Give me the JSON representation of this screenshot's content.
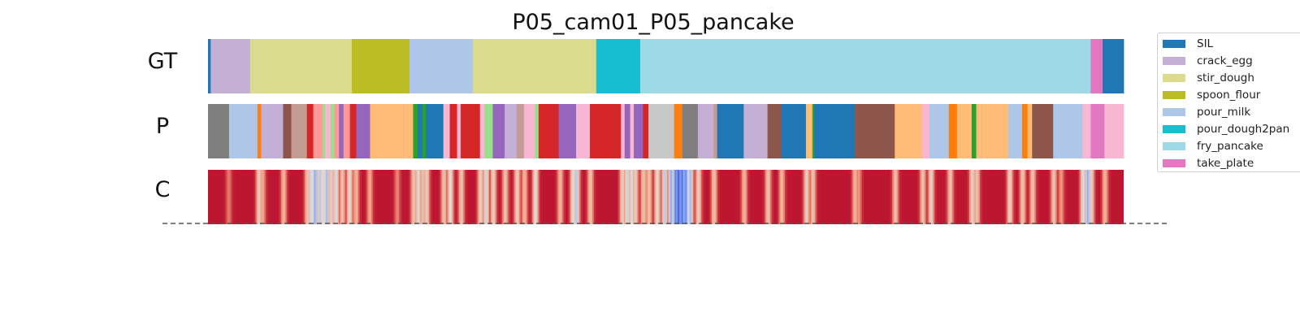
{
  "chart_data": {
    "type": "segmentation",
    "title": "P05_cam01_P05_pancake",
    "rows": [
      "GT",
      "P",
      "C"
    ],
    "x_range": [
      0,
      1
    ],
    "legend": {
      "placement": "right",
      "items": [
        {
          "name": "SIL",
          "color": "#1f77b4"
        },
        {
          "name": "crack_egg",
          "color": "#c5b0d5"
        },
        {
          "name": "stir_dough",
          "color": "#dbdb8d"
        },
        {
          "name": "spoon_flour",
          "color": "#bcbd22"
        },
        {
          "name": "pour_milk",
          "color": "#aec7e8"
        },
        {
          "name": "pour_dough2pan",
          "color": "#17becf"
        },
        {
          "name": "fry_pancake",
          "color": "#9edae5"
        },
        {
          "name": "take_plate",
          "color": "#e377c2"
        }
      ]
    },
    "gt_segments": [
      {
        "start": 0.0,
        "end": 0.003,
        "color": "#1f77b4"
      },
      {
        "start": 0.003,
        "end": 0.046,
        "color": "#c5b0d5"
      },
      {
        "start": 0.046,
        "end": 0.157,
        "color": "#dbdb8d"
      },
      {
        "start": 0.157,
        "end": 0.22,
        "color": "#bcbd22"
      },
      {
        "start": 0.22,
        "end": 0.289,
        "color": "#aec7e8"
      },
      {
        "start": 0.289,
        "end": 0.424,
        "color": "#dbdb8d"
      },
      {
        "start": 0.424,
        "end": 0.472,
        "color": "#17becf"
      },
      {
        "start": 0.472,
        "end": 0.964,
        "color": "#9edae5"
      },
      {
        "start": 0.964,
        "end": 0.977,
        "color": "#e377c2"
      },
      {
        "start": 0.977,
        "end": 1.0,
        "color": "#1f77b4"
      }
    ],
    "pred_segments": [
      {
        "start": 0.0,
        "end": 0.023,
        "color": "#7f7f7f"
      },
      {
        "start": 0.023,
        "end": 0.054,
        "color": "#aec7e8"
      },
      {
        "start": 0.054,
        "end": 0.058,
        "color": "#ff7f0e"
      },
      {
        "start": 0.058,
        "end": 0.082,
        "color": "#c5b0d5"
      },
      {
        "start": 0.082,
        "end": 0.091,
        "color": "#8c564b"
      },
      {
        "start": 0.091,
        "end": 0.108,
        "color": "#c49c94"
      },
      {
        "start": 0.108,
        "end": 0.115,
        "color": "#d62728"
      },
      {
        "start": 0.115,
        "end": 0.125,
        "color": "#ff9896"
      },
      {
        "start": 0.125,
        "end": 0.128,
        "color": "#98df8a"
      },
      {
        "start": 0.128,
        "end": 0.134,
        "color": "#f7b6d2"
      },
      {
        "start": 0.134,
        "end": 0.138,
        "color": "#98df8a"
      },
      {
        "start": 0.138,
        "end": 0.143,
        "color": "#ff9896"
      },
      {
        "start": 0.143,
        "end": 0.148,
        "color": "#9467bd"
      },
      {
        "start": 0.148,
        "end": 0.155,
        "color": "#ff9896"
      },
      {
        "start": 0.155,
        "end": 0.162,
        "color": "#d62728"
      },
      {
        "start": 0.162,
        "end": 0.177,
        "color": "#9467bd"
      },
      {
        "start": 0.177,
        "end": 0.224,
        "color": "#ffbb78"
      },
      {
        "start": 0.224,
        "end": 0.229,
        "color": "#2ca02c"
      },
      {
        "start": 0.229,
        "end": 0.234,
        "color": "#1f77b4"
      },
      {
        "start": 0.234,
        "end": 0.238,
        "color": "#2ca02c"
      },
      {
        "start": 0.238,
        "end": 0.257,
        "color": "#1f77b4"
      },
      {
        "start": 0.257,
        "end": 0.264,
        "color": "#f7b6d2"
      },
      {
        "start": 0.264,
        "end": 0.272,
        "color": "#d62728"
      },
      {
        "start": 0.272,
        "end": 0.276,
        "color": "#f7b6d2"
      },
      {
        "start": 0.276,
        "end": 0.297,
        "color": "#d62728"
      },
      {
        "start": 0.297,
        "end": 0.302,
        "color": "#f7b6d2"
      },
      {
        "start": 0.302,
        "end": 0.311,
        "color": "#98df8a"
      },
      {
        "start": 0.311,
        "end": 0.324,
        "color": "#9467bd"
      },
      {
        "start": 0.324,
        "end": 0.337,
        "color": "#c5b0d5"
      },
      {
        "start": 0.337,
        "end": 0.345,
        "color": "#c49c94"
      },
      {
        "start": 0.345,
        "end": 0.357,
        "color": "#f7b6d2"
      },
      {
        "start": 0.357,
        "end": 0.361,
        "color": "#98df8a"
      },
      {
        "start": 0.361,
        "end": 0.383,
        "color": "#d62728"
      },
      {
        "start": 0.383,
        "end": 0.402,
        "color": "#9467bd"
      },
      {
        "start": 0.402,
        "end": 0.417,
        "color": "#f7b6d2"
      },
      {
        "start": 0.417,
        "end": 0.451,
        "color": "#d62728"
      },
      {
        "start": 0.451,
        "end": 0.455,
        "color": "#f7b6d2"
      },
      {
        "start": 0.455,
        "end": 0.461,
        "color": "#9467bd"
      },
      {
        "start": 0.461,
        "end": 0.465,
        "color": "#f7b6d2"
      },
      {
        "start": 0.465,
        "end": 0.475,
        "color": "#9467bd"
      },
      {
        "start": 0.475,
        "end": 0.481,
        "color": "#d62728"
      },
      {
        "start": 0.481,
        "end": 0.509,
        "color": "#c7c7c7"
      },
      {
        "start": 0.509,
        "end": 0.518,
        "color": "#ff7f0e"
      },
      {
        "start": 0.518,
        "end": 0.535,
        "color": "#7f7f7f"
      },
      {
        "start": 0.535,
        "end": 0.552,
        "color": "#c5b0d5"
      },
      {
        "start": 0.552,
        "end": 0.556,
        "color": "#c49c94"
      },
      {
        "start": 0.556,
        "end": 0.585,
        "color": "#1f77b4"
      },
      {
        "start": 0.585,
        "end": 0.611,
        "color": "#c5b0d5"
      },
      {
        "start": 0.611,
        "end": 0.626,
        "color": "#8c564b"
      },
      {
        "start": 0.626,
        "end": 0.653,
        "color": "#1f77b4"
      },
      {
        "start": 0.653,
        "end": 0.66,
        "color": "#ffbb78"
      },
      {
        "start": 0.66,
        "end": 0.662,
        "color": "#2ca02c"
      },
      {
        "start": 0.662,
        "end": 0.706,
        "color": "#1f77b4"
      },
      {
        "start": 0.706,
        "end": 0.75,
        "color": "#8c564b"
      },
      {
        "start": 0.75,
        "end": 0.78,
        "color": "#ffbb78"
      },
      {
        "start": 0.78,
        "end": 0.788,
        "color": "#f7b6d2"
      },
      {
        "start": 0.788,
        "end": 0.809,
        "color": "#aec7e8"
      },
      {
        "start": 0.809,
        "end": 0.818,
        "color": "#ff7f0e"
      },
      {
        "start": 0.818,
        "end": 0.834,
        "color": "#ffbb78"
      },
      {
        "start": 0.834,
        "end": 0.839,
        "color": "#2ca02c"
      },
      {
        "start": 0.839,
        "end": 0.874,
        "color": "#ffbb78"
      },
      {
        "start": 0.874,
        "end": 0.889,
        "color": "#aec7e8"
      },
      {
        "start": 0.889,
        "end": 0.895,
        "color": "#ff7f0e"
      },
      {
        "start": 0.895,
        "end": 0.9,
        "color": "#ffbb78"
      },
      {
        "start": 0.9,
        "end": 0.923,
        "color": "#8c564b"
      },
      {
        "start": 0.923,
        "end": 0.955,
        "color": "#aec7e8"
      },
      {
        "start": 0.955,
        "end": 0.964,
        "color": "#f7b6d2"
      },
      {
        "start": 0.964,
        "end": 0.979,
        "color": "#e377c2"
      },
      {
        "start": 0.979,
        "end": 1.0,
        "color": "#f7b6d2"
      }
    ],
    "confidence": {
      "colormap": "coolwarm",
      "base_level": 0.95,
      "dips": [
        {
          "x": 0.022,
          "level": 0.8
        },
        {
          "x": 0.055,
          "level": 0.55
        },
        {
          "x": 0.059,
          "level": 0.7
        },
        {
          "x": 0.082,
          "level": 0.65
        },
        {
          "x": 0.108,
          "level": 0.6
        },
        {
          "x": 0.112,
          "level": 0.45
        },
        {
          "x": 0.116,
          "level": 0.3
        },
        {
          "x": 0.121,
          "level": 0.4
        },
        {
          "x": 0.125,
          "level": 0.5
        },
        {
          "x": 0.129,
          "level": 0.35
        },
        {
          "x": 0.134,
          "level": 0.55
        },
        {
          "x": 0.139,
          "level": 0.45
        },
        {
          "x": 0.146,
          "level": 0.6
        },
        {
          "x": 0.154,
          "level": 0.5
        },
        {
          "x": 0.161,
          "level": 0.65
        },
        {
          "x": 0.176,
          "level": 0.7
        },
        {
          "x": 0.206,
          "level": 0.78
        },
        {
          "x": 0.224,
          "level": 0.6
        },
        {
          "x": 0.229,
          "level": 0.5
        },
        {
          "x": 0.234,
          "level": 0.6
        },
        {
          "x": 0.238,
          "level": 0.55
        },
        {
          "x": 0.257,
          "level": 0.6
        },
        {
          "x": 0.264,
          "level": 0.5
        },
        {
          "x": 0.276,
          "level": 0.6
        },
        {
          "x": 0.297,
          "level": 0.55
        },
        {
          "x": 0.303,
          "level": 0.45
        },
        {
          "x": 0.311,
          "level": 0.55
        },
        {
          "x": 0.324,
          "level": 0.6
        },
        {
          "x": 0.337,
          "level": 0.55
        },
        {
          "x": 0.345,
          "level": 0.65
        },
        {
          "x": 0.357,
          "level": 0.5
        },
        {
          "x": 0.384,
          "level": 0.65
        },
        {
          "x": 0.398,
          "level": 0.5
        },
        {
          "x": 0.402,
          "level": 0.4
        },
        {
          "x": 0.417,
          "level": 0.6
        },
        {
          "x": 0.452,
          "level": 0.55
        },
        {
          "x": 0.457,
          "level": 0.45
        },
        {
          "x": 0.462,
          "level": 0.5
        },
        {
          "x": 0.466,
          "level": 0.55
        },
        {
          "x": 0.475,
          "level": 0.6
        },
        {
          "x": 0.481,
          "level": 0.6
        },
        {
          "x": 0.49,
          "level": 0.5
        },
        {
          "x": 0.498,
          "level": 0.4
        },
        {
          "x": 0.505,
          "level": 0.3
        },
        {
          "x": 0.51,
          "level": 0.15
        },
        {
          "x": 0.513,
          "level": 0.05
        },
        {
          "x": 0.517,
          "level": 0.1
        },
        {
          "x": 0.521,
          "level": 0.18
        },
        {
          "x": 0.526,
          "level": 0.35
        },
        {
          "x": 0.535,
          "level": 0.55
        },
        {
          "x": 0.552,
          "level": 0.6
        },
        {
          "x": 0.585,
          "level": 0.65
        },
        {
          "x": 0.611,
          "level": 0.6
        },
        {
          "x": 0.626,
          "level": 0.65
        },
        {
          "x": 0.653,
          "level": 0.55
        },
        {
          "x": 0.66,
          "level": 0.6
        },
        {
          "x": 0.706,
          "level": 0.65
        },
        {
          "x": 0.71,
          "level": 0.75
        },
        {
          "x": 0.75,
          "level": 0.6
        },
        {
          "x": 0.78,
          "level": 0.6
        },
        {
          "x": 0.789,
          "level": 0.55
        },
        {
          "x": 0.81,
          "level": 0.6
        },
        {
          "x": 0.834,
          "level": 0.55
        },
        {
          "x": 0.839,
          "level": 0.6
        },
        {
          "x": 0.875,
          "level": 0.55
        },
        {
          "x": 0.889,
          "level": 0.6
        },
        {
          "x": 0.9,
          "level": 0.6
        },
        {
          "x": 0.923,
          "level": 0.6
        },
        {
          "x": 0.931,
          "level": 0.75
        },
        {
          "x": 0.955,
          "level": 0.45
        },
        {
          "x": 0.96,
          "level": 0.3
        },
        {
          "x": 0.964,
          "level": 0.55
        },
        {
          "x": 0.979,
          "level": 0.65
        }
      ]
    }
  }
}
